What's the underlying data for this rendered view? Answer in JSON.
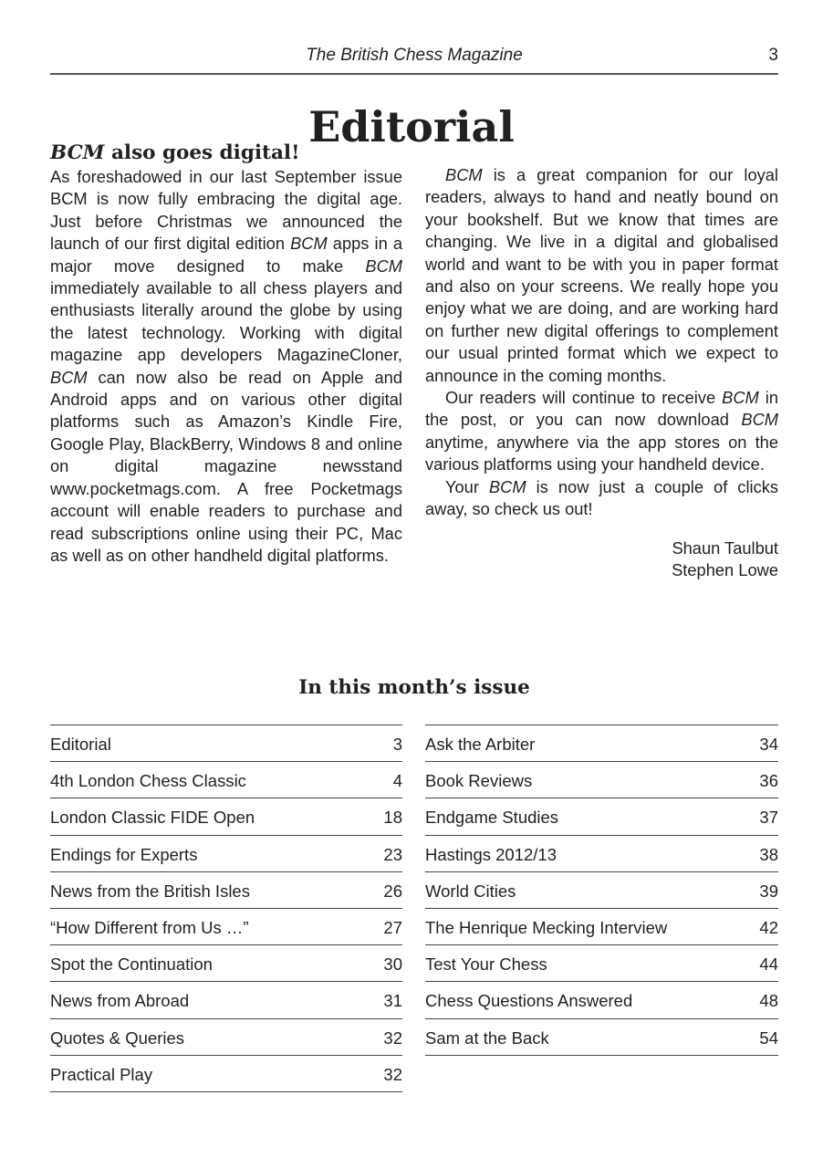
{
  "header": {
    "magazine": "The British Chess Magazine",
    "page_number": "3"
  },
  "title": "Editorial",
  "article": {
    "heading_italic": "BCM",
    "heading_rest": " also goes digital!",
    "left_paragraphs": [
      [
        {
          "t": "As foreshadowed in our last September issue BCM is now fully embracing the digital age. Just before Christmas we announced the launch of our first digital edition "
        },
        {
          "t": "BCM",
          "i": true
        },
        {
          "t": " apps in a major move designed to make "
        },
        {
          "t": "BCM",
          "i": true
        },
        {
          "t": " immediately available to all chess players and enthusiasts literally around the globe by using the latest technology. Working with digital magazine app developers MagazineCloner, "
        },
        {
          "t": "BCM",
          "i": true
        },
        {
          "t": " can now also be read on Apple and Android apps and on various other digital platforms such as Amazon’s Kindle Fire, Google Play, BlackBerry, Windows 8 and online on digital magazine newsstand www.pocketmags.com. A free Pocketmags account will enable readers to purchase and read subscriptions online using their PC, Mac as well as on other handheld digital platforms."
        }
      ]
    ],
    "right_paragraphs": [
      [
        {
          "t": "BCM",
          "i": true
        },
        {
          "t": " is a great companion for our loyal readers, always to hand and neatly bound on your bookshelf. But we know that times are changing. We live in a digital and globalised world and want to be with you in paper format and also on your screens. We really hope you enjoy what we are doing, and are working hard on further new digital offerings to complement our usual printed format which we expect to announce in the coming months."
        }
      ],
      [
        {
          "t": "Our readers will continue to receive "
        },
        {
          "t": "BCM",
          "i": true
        },
        {
          "t": " in the post, or you can now download "
        },
        {
          "t": "BCM",
          "i": true
        },
        {
          "t": " anytime, anywhere via the app stores on the various platforms using your handheld device."
        }
      ],
      [
        {
          "t": "Your "
        },
        {
          "t": "BCM",
          "i": true
        },
        {
          "t": " is now just a couple of clicks away, so check us out!"
        }
      ]
    ],
    "signatures": [
      "Shaun Taulbut",
      "Stephen Lowe"
    ]
  },
  "contents": {
    "title": "In this month’s issue",
    "left": [
      {
        "label": "Editorial",
        "page": "3"
      },
      {
        "label": "4th London Chess Classic",
        "page": "4"
      },
      {
        "label": "London Classic FIDE Open",
        "page": "18"
      },
      {
        "label": "Endings for Experts",
        "page": "23"
      },
      {
        "label": "News from the British Isles",
        "page": "26"
      },
      {
        "label": "“How Different from Us …”",
        "page": "27"
      },
      {
        "label": "Spot the Continuation",
        "page": "30"
      },
      {
        "label": "News from Abroad",
        "page": "31"
      },
      {
        "label": "Quotes & Queries",
        "page": "32"
      },
      {
        "label": "Practical Play",
        "page": "32"
      }
    ],
    "right": [
      {
        "label": "Ask the Arbiter",
        "page": "34"
      },
      {
        "label": "Book Reviews",
        "page": "36"
      },
      {
        "label": "Endgame Studies",
        "page": "37"
      },
      {
        "label": "Hastings 2012/13",
        "page": "38"
      },
      {
        "label": "World Cities",
        "page": "39"
      },
      {
        "label": "The Henrique Mecking Interview",
        "page": "42"
      },
      {
        "label": "Test Your Chess",
        "page": "44"
      },
      {
        "label": "Chess Questions Answered",
        "page": "48"
      },
      {
        "label": "Sam at the Back",
        "page": "54"
      }
    ]
  }
}
